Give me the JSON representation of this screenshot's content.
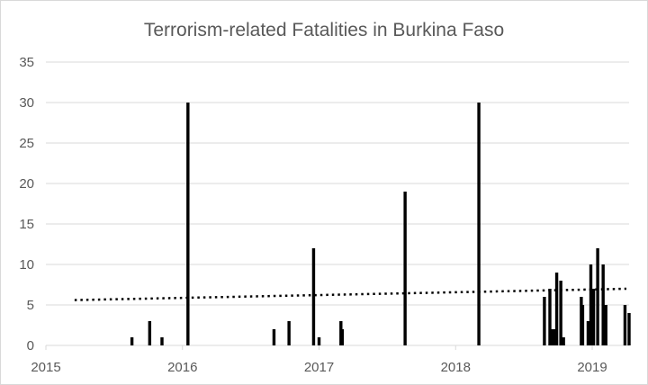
{
  "chart_data": {
    "type": "bar",
    "title": "Terrorism-related Fatalities in Burkina Faso",
    "xlabel": "",
    "ylabel": "",
    "xlim": [
      2015.0,
      2019.27
    ],
    "ylim": [
      0,
      35
    ],
    "yticks": [
      0,
      5,
      10,
      15,
      20,
      25,
      30,
      35
    ],
    "xticks": [
      {
        "value": 2015.0,
        "label": "2015"
      },
      {
        "value": 2016.0,
        "label": "2016"
      },
      {
        "value": 2017.0,
        "label": "2017"
      },
      {
        "value": 2018.0,
        "label": "2018"
      },
      {
        "value": 2019.0,
        "label": "2019"
      }
    ],
    "grid": true,
    "legend": "none",
    "bar_color": "#000000",
    "grid_color": "#d9d9d9",
    "trendline": {
      "style": "dotted",
      "color": "#000000",
      "x": [
        2015.21,
        2019.25
      ],
      "y": [
        5.6,
        7.0
      ]
    },
    "points": [
      {
        "x": 2015.63,
        "y": 1
      },
      {
        "x": 2015.76,
        "y": 3
      },
      {
        "x": 2015.85,
        "y": 1
      },
      {
        "x": 2016.04,
        "y": 30
      },
      {
        "x": 2016.67,
        "y": 2
      },
      {
        "x": 2016.78,
        "y": 3
      },
      {
        "x": 2016.96,
        "y": 12
      },
      {
        "x": 2017.0,
        "y": 1
      },
      {
        "x": 2017.16,
        "y": 3
      },
      {
        "x": 2017.17,
        "y": 2
      },
      {
        "x": 2017.63,
        "y": 19
      },
      {
        "x": 2018.17,
        "y": 30
      },
      {
        "x": 2018.65,
        "y": 6
      },
      {
        "x": 2018.69,
        "y": 7
      },
      {
        "x": 2018.7,
        "y": 2
      },
      {
        "x": 2018.72,
        "y": 2
      },
      {
        "x": 2018.74,
        "y": 9
      },
      {
        "x": 2018.77,
        "y": 8
      },
      {
        "x": 2018.79,
        "y": 1
      },
      {
        "x": 2018.92,
        "y": 6
      },
      {
        "x": 2018.93,
        "y": 5
      },
      {
        "x": 2018.97,
        "y": 3
      },
      {
        "x": 2018.99,
        "y": 10
      },
      {
        "x": 2019.01,
        "y": 7
      },
      {
        "x": 2019.04,
        "y": 12
      },
      {
        "x": 2019.08,
        "y": 10
      },
      {
        "x": 2019.1,
        "y": 5
      },
      {
        "x": 2019.24,
        "y": 5
      },
      {
        "x": 2019.27,
        "y": 4
      }
    ]
  }
}
